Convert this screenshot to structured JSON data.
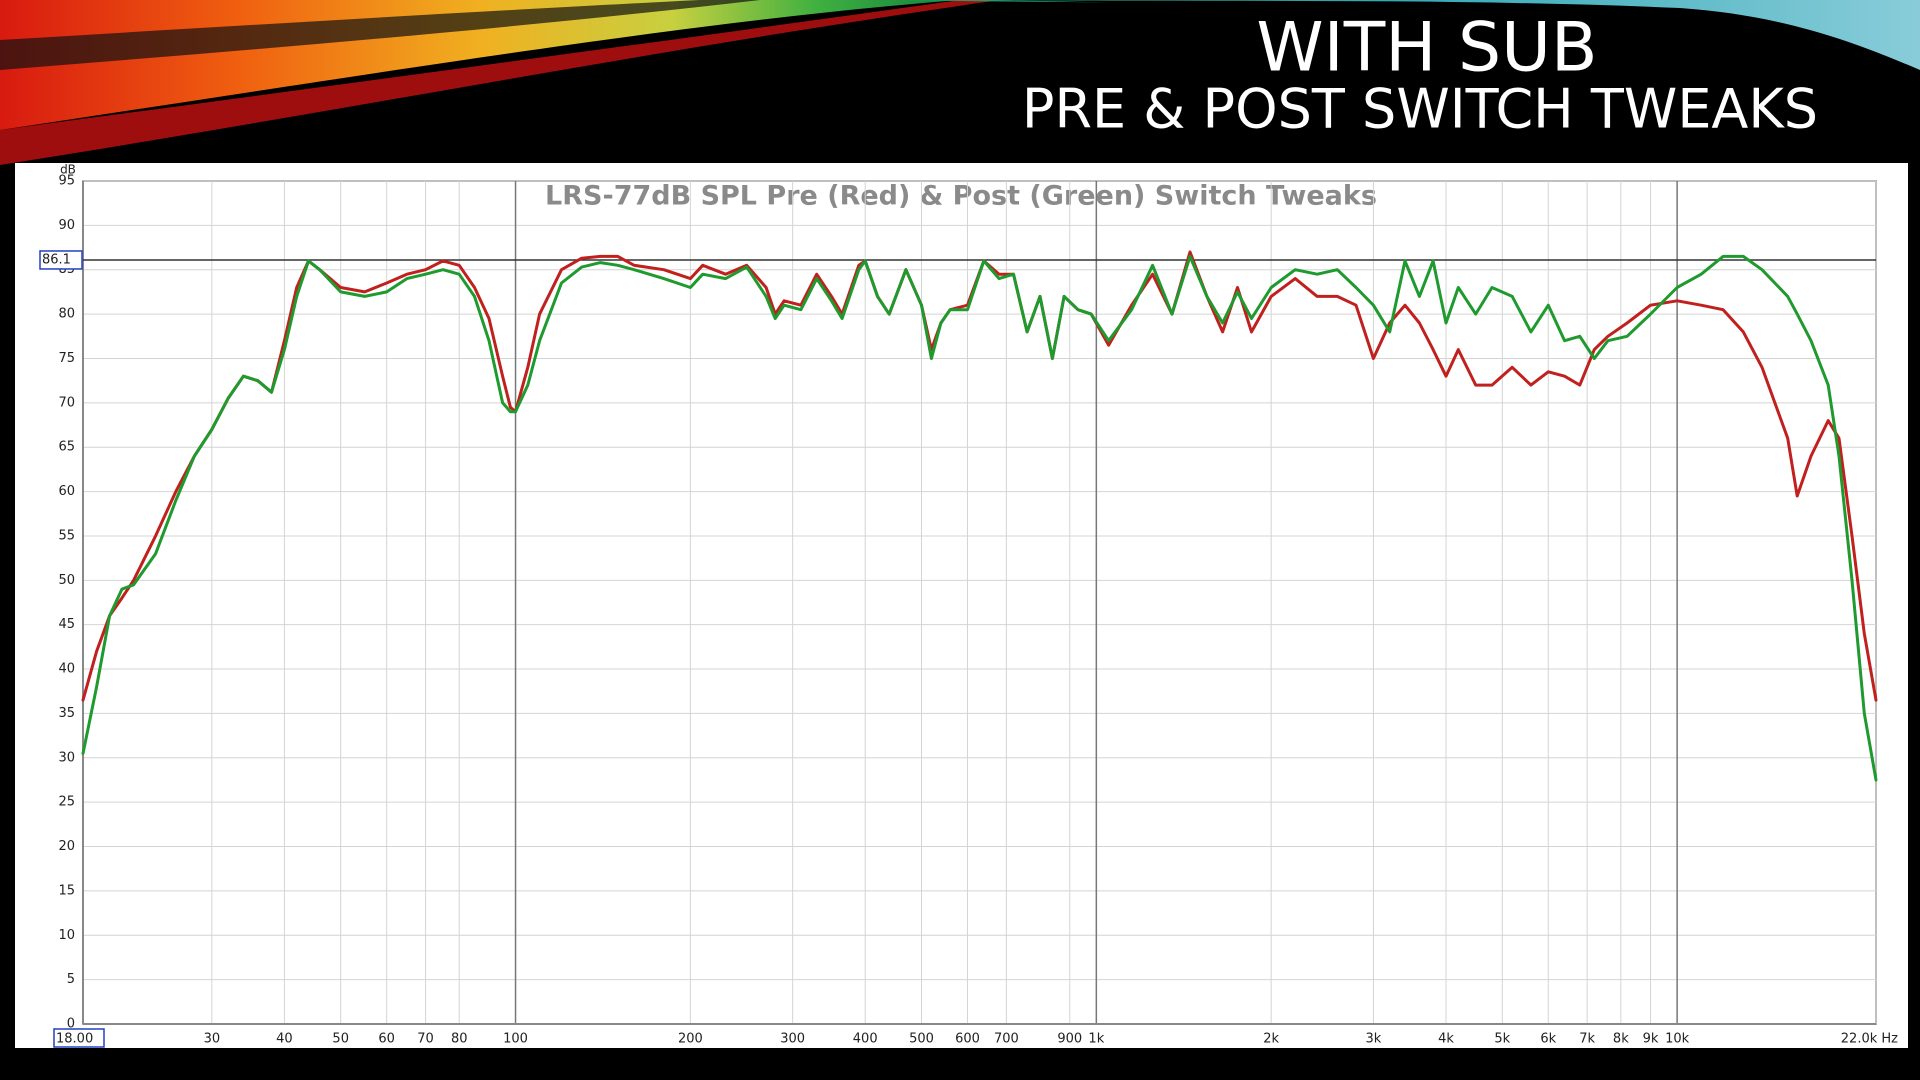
{
  "slide": {
    "title": "WITH SUB",
    "subtitle": "PRE & POST SWITCH TWEAKS"
  },
  "chart_data": {
    "type": "line",
    "title": "LRS-77dB SPL Pre (Red) & Post (Green) Switch Tweaks",
    "ylabel": "dB",
    "xscale": "log",
    "grid": true,
    "reference_line": 86.1,
    "x": [
      18,
      19,
      20,
      21,
      22,
      24,
      26,
      28,
      30,
      32,
      34,
      36,
      38,
      40,
      42,
      44,
      46,
      50,
      55,
      60,
      65,
      70,
      75,
      80,
      85,
      90,
      95,
      98,
      100,
      105,
      110,
      120,
      130,
      140,
      150,
      160,
      180,
      200,
      210,
      230,
      250,
      270,
      280,
      290,
      310,
      330,
      350,
      365,
      390,
      400,
      420,
      440,
      470,
      500,
      520,
      540,
      560,
      600,
      640,
      680,
      720,
      760,
      800,
      840,
      880,
      930,
      980,
      1050,
      1150,
      1250,
      1350,
      1450,
      1550,
      1650,
      1750,
      1850,
      2000,
      2200,
      2400,
      2600,
      2800,
      3000,
      3200,
      3400,
      3600,
      3800,
      4000,
      4200,
      4500,
      4800,
      5200,
      5600,
      6000,
      6400,
      6800,
      7200,
      7600,
      8200,
      9000,
      10000,
      11000,
      12000,
      13000,
      14000,
      15500,
      16100,
      17000,
      18200,
      19000,
      20000,
      21000,
      22000
    ],
    "series": [
      {
        "color": "#c0201e",
        "values": [
          36.5,
          42,
          46,
          48,
          50,
          55,
          60,
          64,
          67,
          70.5,
          73,
          72.5,
          71.2,
          77,
          83,
          86,
          85,
          83,
          82.5,
          83.5,
          84.5,
          85,
          86,
          85.5,
          83,
          79.5,
          73,
          69.5,
          69,
          74,
          80,
          85,
          86.3,
          86.5,
          86.5,
          85.5,
          85,
          84,
          85.5,
          84.5,
          85.5,
          83,
          80,
          81.5,
          81,
          84.5,
          82,
          80,
          85.5,
          86,
          82,
          80,
          85,
          81,
          76,
          79,
          80.5,
          81,
          86,
          84.5,
          84.5,
          78,
          82,
          75,
          82,
          80.5,
          80,
          76.5,
          81,
          84.5,
          80,
          87,
          82,
          78,
          83,
          78,
          82,
          84,
          82,
          82,
          81,
          75,
          79,
          81,
          79,
          76,
          73,
          76,
          72,
          72,
          74,
          72,
          73.5,
          73,
          72,
          76,
          77.5,
          79,
          81,
          81.5,
          81,
          80.5,
          78,
          74,
          66,
          59.5,
          64,
          68,
          66,
          55,
          44,
          36.5
        ]
      },
      {
        "color": "#1f9a2e",
        "values": [
          30.5,
          38,
          46,
          49,
          49.5,
          53,
          59,
          64,
          67,
          70.5,
          73,
          72.5,
          71.2,
          76,
          82,
          86,
          85,
          82.5,
          82,
          82.5,
          84,
          84.5,
          85,
          84.5,
          82,
          77,
          70,
          69,
          69,
          72,
          77,
          83.5,
          85.3,
          85.8,
          85.5,
          85,
          84,
          83,
          84.5,
          84,
          85.3,
          82,
          79.5,
          81,
          80.5,
          84,
          81.5,
          79.5,
          85,
          86,
          82,
          80,
          85,
          81,
          75,
          79,
          80.5,
          80.5,
          86,
          84,
          84.5,
          78,
          82,
          75,
          82,
          80.5,
          80,
          77,
          80.5,
          85.5,
          80,
          86.5,
          82,
          79,
          82.5,
          79.5,
          83,
          85,
          84.5,
          85,
          83,
          81,
          78,
          86,
          82,
          86,
          79,
          83,
          80,
          83,
          82,
          78,
          81,
          77,
          77.5,
          75,
          77,
          77.5,
          80,
          83,
          84.5,
          86.5,
          86.5,
          85,
          82,
          80,
          77,
          72,
          64,
          50,
          35,
          27.5
        ]
      }
    ],
    "xlim": [
      18,
      22000
    ],
    "xticks": [
      {
        "value": 18,
        "label": "18.00"
      },
      30,
      40,
      50,
      60,
      70,
      80,
      100,
      200,
      300,
      400,
      500,
      600,
      700,
      900,
      {
        "value": 1000,
        "label": "1k"
      },
      {
        "value": 2000,
        "label": "2k"
      },
      {
        "value": 3000,
        "label": "3k"
      },
      {
        "value": 4000,
        "label": "4k"
      },
      {
        "value": 5000,
        "label": "5k"
      },
      {
        "value": 6000,
        "label": "6k"
      },
      {
        "value": 7000,
        "label": "7k"
      },
      {
        "value": 8000,
        "label": "8k"
      },
      {
        "value": 9000,
        "label": "9k"
      },
      {
        "value": 10000,
        "label": "10k"
      },
      {
        "value": 22000,
        "label": "22.0k Hz"
      }
    ],
    "ylim": [
      0,
      95
    ],
    "yticks": [
      0,
      5,
      10,
      15,
      20,
      25,
      30,
      35,
      40,
      45,
      50,
      55,
      60,
      65,
      70,
      75,
      80,
      85,
      90,
      95
    ]
  }
}
